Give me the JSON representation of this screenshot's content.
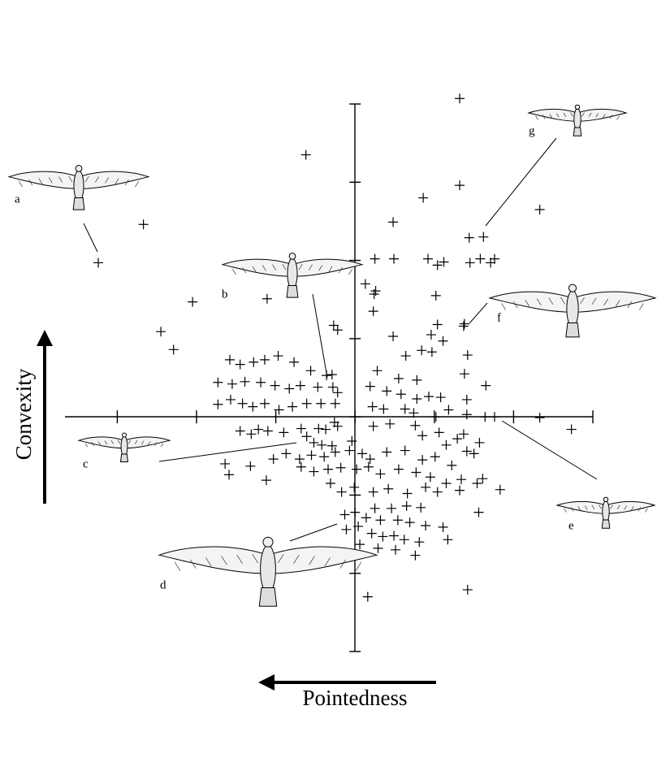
{
  "chart_data": {
    "type": "scatter",
    "x_label": "Pointedness",
    "y_label": "Convexity",
    "annotations": [
      "a",
      "b",
      "c",
      "d",
      "e",
      "f",
      "g"
    ],
    "color": "#000000",
    "xlim": [
      -3.66,
      3.0
    ],
    "ylim": [
      -3,
      4
    ],
    "xticks": [
      -3,
      -2,
      -1,
      0,
      1,
      2,
      3
    ],
    "yticks": [
      -3,
      -2,
      -1,
      0,
      1,
      2,
      3,
      4
    ],
    "grid": false,
    "x": [
      1.32,
      -0.62,
      1.32,
      0.86,
      2.33,
      -2.67,
      0.48,
      1.44,
      1.62,
      -3.24,
      0.25,
      0.49,
      0.92,
      1.12,
      1.04,
      1.45,
      1.58,
      1.76,
      1.71,
      0.13,
      0.26,
      1.02,
      -2.05,
      -1.11,
      0.23,
      -0.27,
      -0.22,
      1.38,
      -2.45,
      -2.29,
      0.48,
      0.96,
      1.11,
      0.64,
      0.84,
      0.97,
      1.42,
      -1.58,
      -1.45,
      -1.28,
      -1.14,
      -0.97,
      -0.77,
      -0.56,
      -0.36,
      -0.29,
      0.28,
      0.55,
      0.78,
      1.38,
      1.65,
      -1.73,
      -1.55,
      -1.39,
      -1.19,
      -1.01,
      -0.83,
      -0.69,
      -0.47,
      -0.28,
      -0.22,
      0.19,
      0.4,
      0.58,
      0.78,
      0.93,
      1.08,
      1.41,
      -1.73,
      -1.57,
      -1.42,
      -1.29,
      -1.14,
      -0.96,
      -0.79,
      -0.61,
      -0.43,
      -0.25,
      0.22,
      0.36,
      0.63,
      0.74,
      1.02,
      1.18,
      1.41,
      1.64,
      1.76,
      2.33,
      2.73,
      -1.45,
      -1.31,
      -1.22,
      -1.1,
      -0.9,
      -0.68,
      -0.46,
      -0.37,
      -0.26,
      -0.22,
      -0.61,
      -0.52,
      -0.42,
      -0.29,
      -0.04,
      0.23,
      0.44,
      0.76,
      0.85,
      1.06,
      1.15,
      1.29,
      1.37,
      1.41,
      1.57,
      -1.64,
      -1.32,
      -1.03,
      -0.87,
      -0.7,
      -0.55,
      -0.39,
      -0.25,
      -0.07,
      0.09,
      0.19,
      0.4,
      0.63,
      0.85,
      1.01,
      1.22,
      1.5,
      -1.59,
      -1.12,
      -0.68,
      -0.52,
      -0.34,
      -0.18,
      0.02,
      0.17,
      0.32,
      0.55,
      0.77,
      0.95,
      1.15,
      1.34,
      1.54,
      1.61,
      1.83,
      -0.31,
      -0.17,
      -0.01,
      0.23,
      0.42,
      0.66,
      0.89,
      1.04,
      1.32,
      0.25,
      0.46,
      0.65,
      0.83,
      1.56,
      -0.13,
      0,
      0.14,
      0.32,
      0.54,
      0.69,
      0.89,
      1.11,
      -0.11,
      0.04,
      0.21,
      0.35,
      0.49,
      0.62,
      0.81,
      1.17,
      0.06,
      0.29,
      0.51,
      0.76,
      0.16,
      1.42,
      1.37,
      1.04,
      0.24
    ],
    "y": [
      4.07,
      3.35,
      2.96,
      2.8,
      2.65,
      2.46,
      2.49,
      2.29,
      2.3,
      1.97,
      2.02,
      2.02,
      2.02,
      1.98,
      1.94,
      1.97,
      2.02,
      2.02,
      1.97,
      1.7,
      1.61,
      1.55,
      1.47,
      1.51,
      1.35,
      1.17,
      1.11,
      1.19,
      1.09,
      0.86,
      1.03,
      1.05,
      0.97,
      0.78,
      0.85,
      0.83,
      0.79,
      0.73,
      0.67,
      0.7,
      0.73,
      0.78,
      0.7,
      0.59,
      0.53,
      0.54,
      0.59,
      0.49,
      0.47,
      0.55,
      0.4,
      0.44,
      0.42,
      0.45,
      0.44,
      0.4,
      0.36,
      0.4,
      0.38,
      0.38,
      0.31,
      0.39,
      0.33,
      0.29,
      0.23,
      0.26,
      0.25,
      0.22,
      0.16,
      0.22,
      0.17,
      0.13,
      0.17,
      0.09,
      0.13,
      0.17,
      0.17,
      0.17,
      0.13,
      0.1,
      0.1,
      0.05,
      0,
      0.09,
      0.03,
      0,
      0,
      -0.01,
      -0.16,
      -0.18,
      -0.22,
      -0.16,
      -0.18,
      -0.2,
      -0.15,
      -0.15,
      -0.16,
      -0.07,
      -0.12,
      -0.25,
      -0.33,
      -0.36,
      -0.37,
      -0.31,
      -0.12,
      -0.09,
      -0.11,
      -0.24,
      -0.2,
      -0.36,
      -0.28,
      -0.22,
      -0.44,
      -0.33,
      -0.6,
      -0.63,
      -0.54,
      -0.47,
      -0.54,
      -0.49,
      -0.51,
      -0.45,
      -0.43,
      -0.47,
      -0.54,
      -0.45,
      -0.43,
      -0.55,
      -0.51,
      -0.62,
      -0.47,
      -0.74,
      -0.81,
      -0.64,
      -0.7,
      -0.67,
      -0.65,
      -0.67,
      -0.64,
      -0.73,
      -0.67,
      -0.71,
      -0.77,
      -0.85,
      -0.8,
      -0.85,
      -0.79,
      -0.93,
      -0.85,
      -0.96,
      -0.9,
      -0.96,
      -0.92,
      -0.98,
      -0.9,
      -0.96,
      -0.94,
      -1.17,
      -1.17,
      -1.14,
      -1.16,
      -1.22,
      -1.25,
      -1.22,
      -1.29,
      -1.32,
      -1.32,
      -1.35,
      -1.39,
      -1.41,
      -1.44,
      -1.4,
      -1.49,
      -1.53,
      -1.52,
      -1.57,
      -1.6,
      -1.57,
      -1.63,
      -1.68,
      -1.7,
      -1.77,
      -2.3,
      -2.21,
      1.16,
      1.18,
      1.57
    ]
  }
}
